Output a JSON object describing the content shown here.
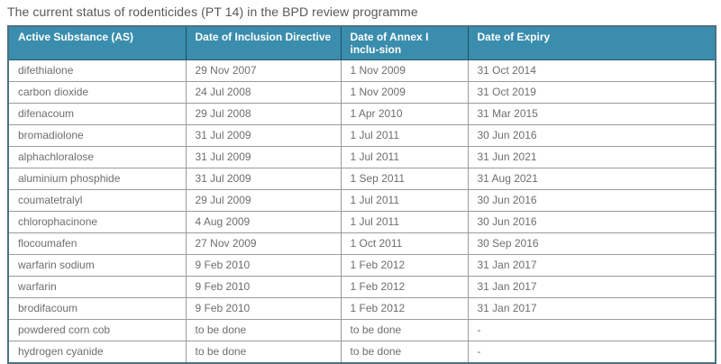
{
  "title": "The current status of rodenticides (PT 14) in the BPD review programme",
  "colors": {
    "header_bg": "#3a8dad",
    "header_text": "#ffffff",
    "outer_border": "#4d7082",
    "header_divider": "#1d4f68",
    "row_border": "#9b9b9b",
    "title_text": "#58595b",
    "cell_text": "#6d6e70"
  },
  "table": {
    "columns": [
      "Active Substance (AS)",
      "Date of Inclusion Directive",
      "Date of Annex I inclu-sion",
      "Date of Expiry"
    ],
    "rows": [
      [
        "difethialone",
        "29 Nov 2007",
        "1 Nov 2009",
        "31 Oct 2014"
      ],
      [
        "carbon dioxide",
        "24 Jul 2008",
        "1 Nov 2009",
        "31 Oct 2019"
      ],
      [
        "difenacoum",
        "29 Jul 2008",
        "1 Apr 2010",
        "31 Mar 2015"
      ],
      [
        "bromadiolone",
        "31 Jul 2009",
        "1 Jul 2011",
        "30 Jun 2016"
      ],
      [
        "alphachloralose",
        "31 Jul 2009",
        "1 Jul 2011",
        "31 Jun 2021"
      ],
      [
        "aluminium phosphide",
        "31 Jul 2009",
        "1 Sep 2011",
        "31 Aug 2021"
      ],
      [
        "coumatetralyl",
        "29 Jul 2009",
        "1 Jul 2011",
        "30 Jun 2016"
      ],
      [
        "chlorophacinone",
        "4 Aug 2009",
        "1 Jul 2011",
        "30 Jun 2016"
      ],
      [
        "flocoumafen",
        "27 Nov 2009",
        "1 Oct 2011",
        "30 Sep 2016"
      ],
      [
        "warfarin sodium",
        "9 Feb 2010",
        "1 Feb 2012",
        "31 Jan 2017"
      ],
      [
        "warfarin",
        "9 Feb 2010",
        "1 Feb 2012",
        "31 Jan 2017"
      ],
      [
        "brodifacoum",
        "9 Feb 2010",
        "1 Feb 2012",
        "31 Jan 2017"
      ],
      [
        "powdered corn cob",
        "to be done",
        "to be done",
        "-"
      ],
      [
        "hydrogen cyanide",
        "to be done",
        "to be done",
        "-"
      ]
    ]
  }
}
